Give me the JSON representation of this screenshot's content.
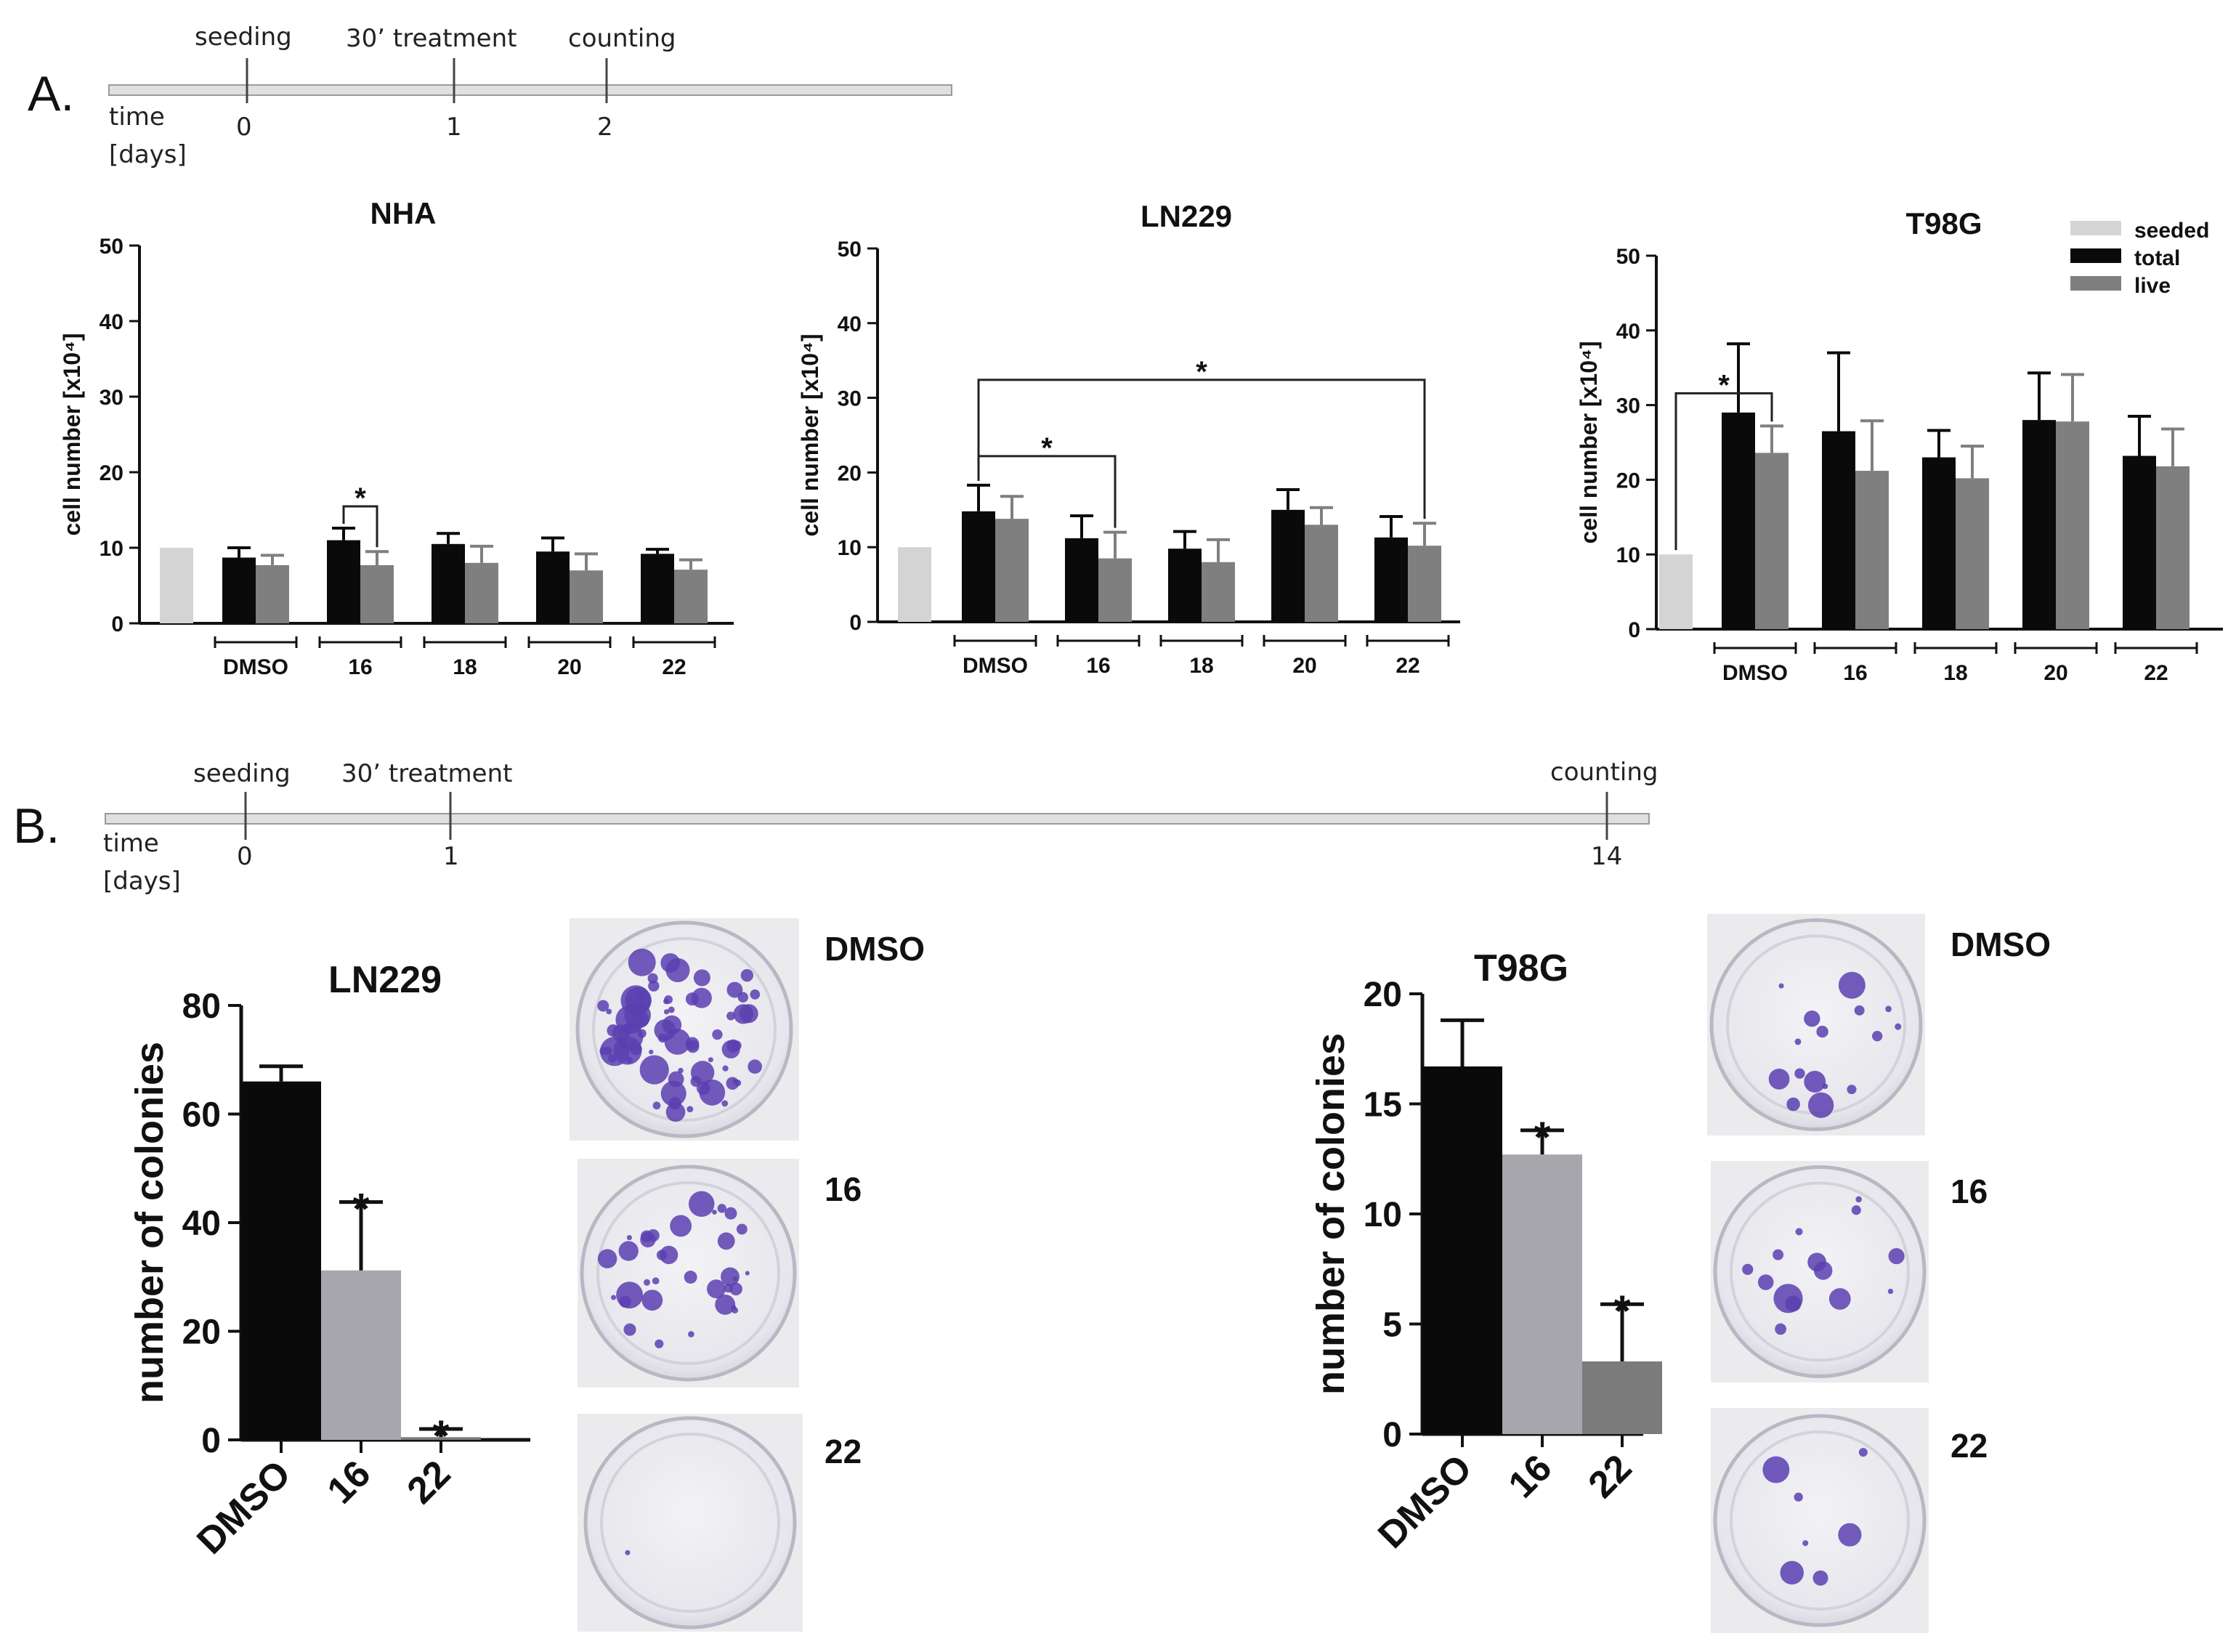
{
  "panels": {
    "a_label": "A.",
    "b_label": "B."
  },
  "timeline_a": {
    "axis_label_1": "time",
    "axis_label_2": "[days]",
    "events": [
      {
        "label": "seeding",
        "tick": "0"
      },
      {
        "label": "30’ treatment",
        "tick": "1"
      },
      {
        "label": "counting",
        "tick": "2"
      }
    ]
  },
  "timeline_b": {
    "axis_label_1": "time",
    "axis_label_2": "[days]",
    "events": [
      {
        "label": "seeding",
        "tick": "0"
      },
      {
        "label": "30’ treatment",
        "tick": "1"
      },
      {
        "label": "counting",
        "tick": "14"
      }
    ]
  },
  "legend": [
    "seeded",
    "total",
    "live"
  ],
  "colors": {
    "seeded": "#d4d4d4",
    "total": "#0a0a0a",
    "live": "#7f7f7f",
    "lightgray": "#a6a6ac",
    "darkgray": "#7b7b7b"
  },
  "plates": {
    "LN229": [
      "DMSO",
      "16",
      "22"
    ],
    "T98G": [
      "DMSO",
      "16",
      "22"
    ]
  },
  "chart_data": [
    {
      "type": "bar",
      "title": "NHA",
      "ylabel": "cell number [x10⁴]",
      "ylim": [
        0,
        50
      ],
      "yticks": [
        "0",
        "10",
        "20",
        "30",
        "40",
        "50"
      ],
      "categories": [
        "DMSO",
        "16",
        "18",
        "20",
        "22"
      ],
      "seeded": 10,
      "series": [
        {
          "name": "total",
          "values": [
            8.7,
            11,
            10.5,
            9.5,
            9.2
          ],
          "errors": [
            1.3,
            1.6,
            1.4,
            1.8,
            0.6
          ]
        },
        {
          "name": "live",
          "values": [
            7.7,
            7.7,
            8,
            7,
            7.1
          ],
          "errors": [
            1.3,
            1.8,
            2.2,
            2.2,
            1.3
          ]
        }
      ],
      "annotations": [
        {
          "text": "*",
          "from": [
            1,
            0
          ],
          "to": [
            1,
            1
          ]
        }
      ]
    },
    {
      "type": "bar",
      "title": "LN229",
      "ylabel": "cell number [x10⁴]",
      "ylim": [
        0,
        50
      ],
      "yticks": [
        "0",
        "10",
        "20",
        "30",
        "40",
        "50"
      ],
      "categories": [
        "DMSO",
        "16",
        "18",
        "20",
        "22"
      ],
      "seeded": 10,
      "series": [
        {
          "name": "total",
          "values": [
            14.8,
            11.2,
            9.8,
            15,
            11.3
          ],
          "errors": [
            3.5,
            3,
            2.3,
            2.7,
            2.8
          ]
        },
        {
          "name": "live",
          "values": [
            13.8,
            8.5,
            8,
            13,
            10.2
          ],
          "errors": [
            3,
            3.5,
            3,
            2.3,
            3
          ]
        }
      ],
      "annotations": [
        {
          "text": "*",
          "from": [
            0,
            0
          ],
          "to": [
            1,
            1
          ]
        },
        {
          "text": "*",
          "from": [
            0,
            0
          ],
          "to": [
            4,
            1
          ]
        }
      ]
    },
    {
      "type": "bar",
      "title": "T98G",
      "ylabel": "cell number [x10⁴]",
      "ylim": [
        0,
        50
      ],
      "yticks": [
        "0",
        "10",
        "20",
        "30",
        "40",
        "50"
      ],
      "categories": [
        "DMSO",
        "16",
        "18",
        "20",
        "22"
      ],
      "seeded": 10,
      "legend_position": "top-right",
      "series": [
        {
          "name": "total",
          "values": [
            29,
            26.5,
            23,
            28,
            23.2
          ],
          "errors": [
            9.2,
            10.5,
            3.6,
            6.3,
            5.3
          ]
        },
        {
          "name": "live",
          "values": [
            23.6,
            21.2,
            20.2,
            27.8,
            21.8
          ],
          "errors": [
            3.6,
            6.7,
            4.3,
            6.3,
            5
          ]
        }
      ],
      "annotations": [
        {
          "text": "*",
          "from": [
            "seeded"
          ],
          "to": [
            0,
            1
          ]
        }
      ]
    },
    {
      "type": "bar",
      "title": "LN229",
      "ylabel": "number of colonies",
      "ylim": [
        0,
        80
      ],
      "yticks": [
        "0",
        "20",
        "40",
        "60",
        "80"
      ],
      "categories": [
        "DMSO",
        "16",
        "22"
      ],
      "values": [
        66,
        31.2,
        0.5
      ],
      "errors": [
        2.8,
        12.6,
        1.5
      ],
      "significance": [
        "",
        "*",
        "*"
      ]
    },
    {
      "type": "bar",
      "title": "T98G",
      "ylabel": "number of colonies",
      "ylim": [
        0,
        20
      ],
      "yticks": [
        "0",
        "5",
        "10",
        "15",
        "20"
      ],
      "categories": [
        "DMSO",
        "16",
        "22"
      ],
      "values": [
        16.7,
        12.7,
        3.3
      ],
      "errors": [
        2.1,
        1.1,
        2.6
      ],
      "significance": [
        "",
        "*",
        "*"
      ]
    }
  ]
}
